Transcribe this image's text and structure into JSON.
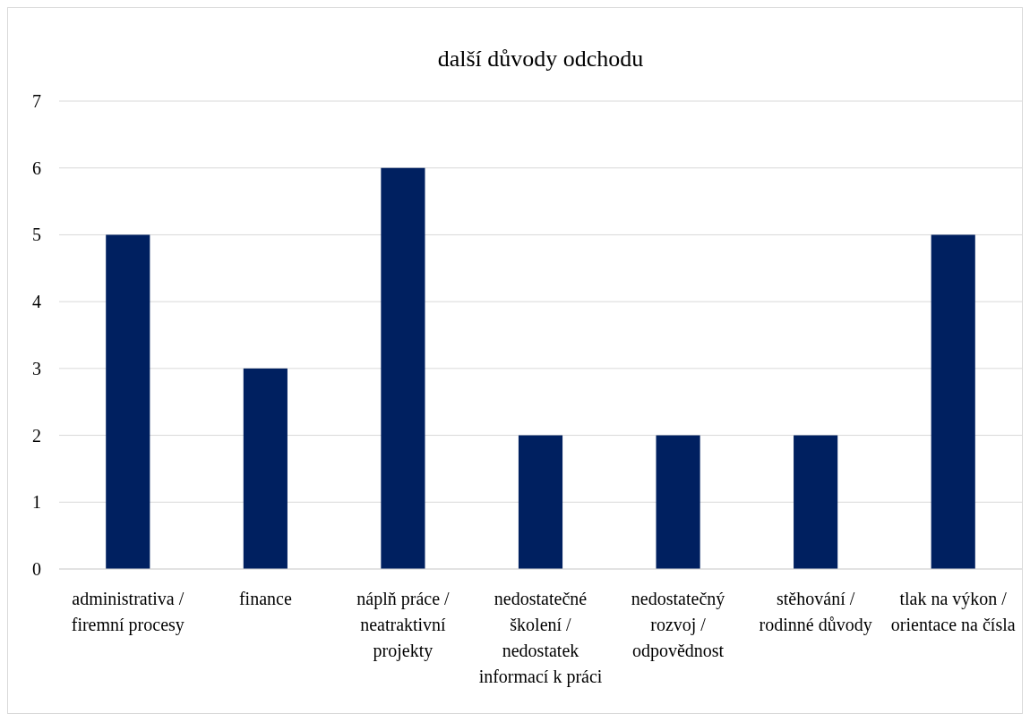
{
  "chart_data": {
    "type": "bar",
    "title": "další důvody odchodu",
    "categories": [
      "administrativa / firemní procesy",
      "finance",
      "náplň práce / neatraktivní projekty",
      "nedostatečné školení / nedostatek informací k práci",
      "nedostatečný rozvoj / odpovědnost",
      "stěhování / rodinné důvody",
      "tlak na výkon / orientace na čísla"
    ],
    "values": [
      5,
      3,
      6,
      2,
      2,
      2,
      5
    ],
    "color": "#002060",
    "ylim": [
      0,
      7
    ],
    "yticks": [
      0,
      1,
      2,
      3,
      4,
      5,
      6,
      7
    ],
    "grid": "y"
  }
}
